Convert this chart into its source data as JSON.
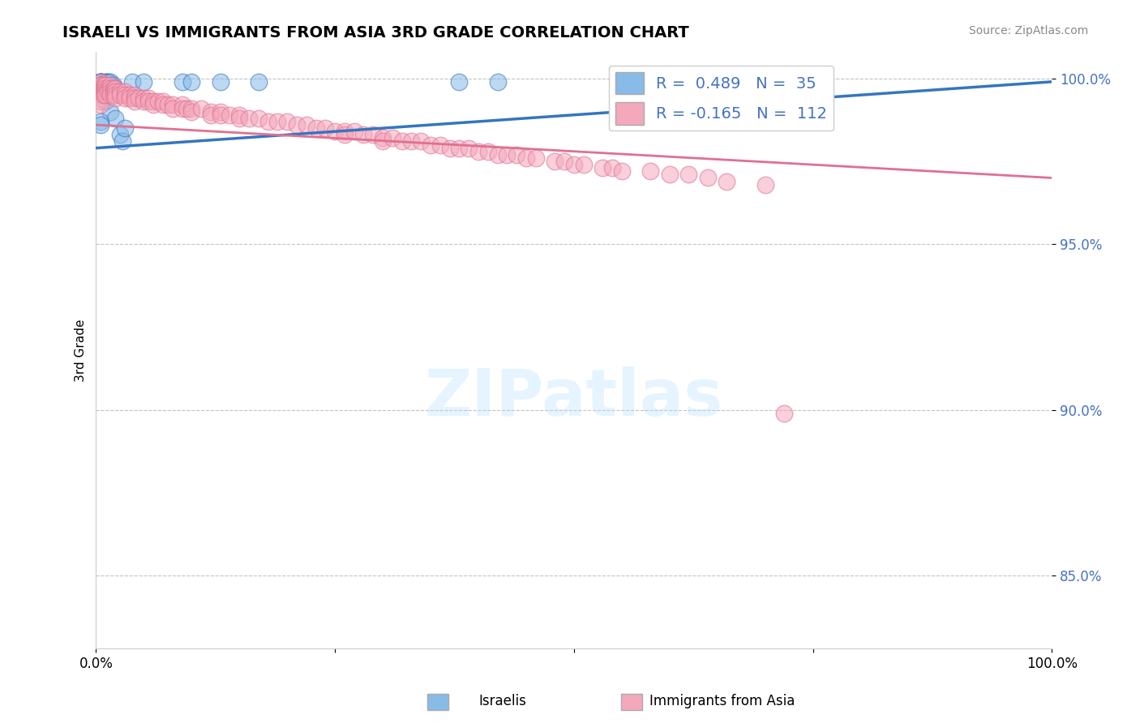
{
  "title": "ISRAELI VS IMMIGRANTS FROM ASIA 3RD GRADE CORRELATION CHART",
  "source": "Source: ZipAtlas.com",
  "ylabel": "3rd Grade",
  "y_tick_vals": [
    0.85,
    0.9,
    0.95,
    1.0
  ],
  "y_tick_labels": [
    "85.0%",
    "90.0%",
    "95.0%",
    "100.0%"
  ],
  "x_range": [
    0.0,
    1.0
  ],
  "y_range": [
    0.828,
    1.008
  ],
  "blue_R": 0.489,
  "blue_N": 35,
  "pink_R": -0.165,
  "pink_N": 112,
  "blue_color": "#88BBE8",
  "pink_color": "#F4A8BC",
  "blue_line_color": "#3575C0",
  "pink_line_color": "#E07090",
  "legend_label_1": "Israelis",
  "legend_label_2": "Immigrants from Asia",
  "watermark": "ZIPatlas",
  "blue_points": [
    [
      0.005,
      0.999
    ],
    [
      0.005,
      0.999
    ],
    [
      0.005,
      0.999
    ],
    [
      0.005,
      0.999
    ],
    [
      0.005,
      0.999
    ],
    [
      0.005,
      0.999
    ],
    [
      0.005,
      0.999
    ],
    [
      0.005,
      0.999
    ],
    [
      0.01,
      0.999
    ],
    [
      0.01,
      0.999
    ],
    [
      0.012,
      0.999
    ],
    [
      0.012,
      0.999
    ],
    [
      0.015,
      0.999
    ],
    [
      0.018,
      0.998
    ],
    [
      0.018,
      0.997
    ],
    [
      0.02,
      0.997
    ],
    [
      0.022,
      0.996
    ],
    [
      0.025,
      0.983
    ],
    [
      0.028,
      0.981
    ],
    [
      0.01,
      0.993
    ],
    [
      0.015,
      0.99
    ],
    [
      0.02,
      0.988
    ],
    [
      0.005,
      0.987
    ],
    [
      0.005,
      0.986
    ],
    [
      0.03,
      0.985
    ],
    [
      0.038,
      0.999
    ],
    [
      0.05,
      0.999
    ],
    [
      0.09,
      0.999
    ],
    [
      0.1,
      0.999
    ],
    [
      0.13,
      0.999
    ],
    [
      0.17,
      0.999
    ],
    [
      0.38,
      0.999
    ],
    [
      0.42,
      0.999
    ],
    [
      0.62,
      0.999
    ],
    [
      0.75,
      0.999
    ]
  ],
  "pink_points": [
    [
      0.005,
      0.999
    ],
    [
      0.005,
      0.998
    ],
    [
      0.005,
      0.998
    ],
    [
      0.005,
      0.997
    ],
    [
      0.005,
      0.996
    ],
    [
      0.005,
      0.996
    ],
    [
      0.005,
      0.995
    ],
    [
      0.005,
      0.994
    ],
    [
      0.005,
      0.993
    ],
    [
      0.005,
      0.992
    ],
    [
      0.008,
      0.998
    ],
    [
      0.008,
      0.997
    ],
    [
      0.008,
      0.996
    ],
    [
      0.008,
      0.995
    ],
    [
      0.01,
      0.998
    ],
    [
      0.01,
      0.997
    ],
    [
      0.01,
      0.996
    ],
    [
      0.01,
      0.995
    ],
    [
      0.012,
      0.997
    ],
    [
      0.012,
      0.996
    ],
    [
      0.015,
      0.998
    ],
    [
      0.015,
      0.997
    ],
    [
      0.015,
      0.996
    ],
    [
      0.015,
      0.995
    ],
    [
      0.018,
      0.997
    ],
    [
      0.018,
      0.996
    ],
    [
      0.018,
      0.995
    ],
    [
      0.02,
      0.997
    ],
    [
      0.02,
      0.996
    ],
    [
      0.02,
      0.995
    ],
    [
      0.02,
      0.994
    ],
    [
      0.025,
      0.996
    ],
    [
      0.025,
      0.995
    ],
    [
      0.03,
      0.996
    ],
    [
      0.03,
      0.995
    ],
    [
      0.03,
      0.994
    ],
    [
      0.035,
      0.995
    ],
    [
      0.035,
      0.994
    ],
    [
      0.04,
      0.995
    ],
    [
      0.04,
      0.994
    ],
    [
      0.04,
      0.993
    ],
    [
      0.045,
      0.994
    ],
    [
      0.05,
      0.994
    ],
    [
      0.05,
      0.993
    ],
    [
      0.055,
      0.994
    ],
    [
      0.055,
      0.993
    ],
    [
      0.06,
      0.993
    ],
    [
      0.06,
      0.992
    ],
    [
      0.065,
      0.993
    ],
    [
      0.07,
      0.993
    ],
    [
      0.07,
      0.992
    ],
    [
      0.075,
      0.992
    ],
    [
      0.08,
      0.992
    ],
    [
      0.08,
      0.991
    ],
    [
      0.09,
      0.992
    ],
    [
      0.09,
      0.991
    ],
    [
      0.095,
      0.991
    ],
    [
      0.1,
      0.991
    ],
    [
      0.1,
      0.99
    ],
    [
      0.11,
      0.991
    ],
    [
      0.12,
      0.99
    ],
    [
      0.12,
      0.989
    ],
    [
      0.13,
      0.99
    ],
    [
      0.13,
      0.989
    ],
    [
      0.14,
      0.989
    ],
    [
      0.15,
      0.989
    ],
    [
      0.15,
      0.988
    ],
    [
      0.16,
      0.988
    ],
    [
      0.17,
      0.988
    ],
    [
      0.18,
      0.987
    ],
    [
      0.19,
      0.987
    ],
    [
      0.2,
      0.987
    ],
    [
      0.21,
      0.986
    ],
    [
      0.22,
      0.986
    ],
    [
      0.23,
      0.985
    ],
    [
      0.24,
      0.985
    ],
    [
      0.25,
      0.984
    ],
    [
      0.26,
      0.984
    ],
    [
      0.26,
      0.983
    ],
    [
      0.27,
      0.984
    ],
    [
      0.28,
      0.983
    ],
    [
      0.29,
      0.983
    ],
    [
      0.3,
      0.982
    ],
    [
      0.3,
      0.981
    ],
    [
      0.31,
      0.982
    ],
    [
      0.32,
      0.981
    ],
    [
      0.33,
      0.981
    ],
    [
      0.34,
      0.981
    ],
    [
      0.35,
      0.98
    ],
    [
      0.36,
      0.98
    ],
    [
      0.37,
      0.979
    ],
    [
      0.38,
      0.979
    ],
    [
      0.39,
      0.979
    ],
    [
      0.4,
      0.978
    ],
    [
      0.41,
      0.978
    ],
    [
      0.42,
      0.977
    ],
    [
      0.43,
      0.977
    ],
    [
      0.44,
      0.977
    ],
    [
      0.45,
      0.976
    ],
    [
      0.46,
      0.976
    ],
    [
      0.48,
      0.975
    ],
    [
      0.49,
      0.975
    ],
    [
      0.5,
      0.974
    ],
    [
      0.51,
      0.974
    ],
    [
      0.53,
      0.973
    ],
    [
      0.54,
      0.973
    ],
    [
      0.55,
      0.972
    ],
    [
      0.58,
      0.972
    ],
    [
      0.6,
      0.971
    ],
    [
      0.62,
      0.971
    ],
    [
      0.64,
      0.97
    ],
    [
      0.66,
      0.969
    ],
    [
      0.7,
      0.968
    ],
    [
      0.72,
      0.899
    ]
  ]
}
